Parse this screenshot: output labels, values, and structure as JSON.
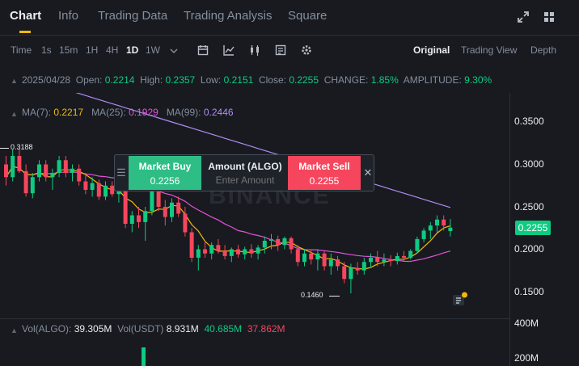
{
  "tabs": [
    {
      "label": "Chart",
      "active": true
    },
    {
      "label": "Info"
    },
    {
      "label": "Trading Data"
    },
    {
      "label": "Trading Analysis"
    },
    {
      "label": "Square"
    }
  ],
  "top_icons": [
    "fullscreen-icon",
    "layout-grid-icon"
  ],
  "toolbar": {
    "intervals": [
      "Time",
      "1s",
      "15m",
      "1H",
      "4H",
      "1D",
      "1W"
    ],
    "active_interval": "1D",
    "tool_icons": [
      "calendar-icon",
      "indicator-icon",
      "candle-type-icon",
      "template-icon",
      "settings-icon"
    ],
    "views": [
      "Original",
      "Trading View",
      "Depth"
    ],
    "active_view": "Original"
  },
  "ohlc": {
    "date": "2025/04/28",
    "open_label": "Open:",
    "open": "0.2214",
    "high_label": "High:",
    "high": "0.2357",
    "low_label": "Low:",
    "low": "0.2151",
    "close_label": "Close:",
    "close": "0.2255",
    "change_label": "CHANGE:",
    "change": "1.85%",
    "amplitude_label": "AMPLITUDE:",
    "amplitude": "9.30%"
  },
  "ma": {
    "ma7_label": "MA(7):",
    "ma7": "0.2217",
    "ma25_label": "MA(25):",
    "ma25": "0.1929",
    "ma99_label": "MA(99):",
    "ma99": "0.2446"
  },
  "colors": {
    "up": "#0ecb81",
    "down": "#f6465d",
    "ma7": "#f0b90b",
    "ma25": "#e154d8",
    "ma99": "#b18cf4",
    "accent": "#f0b90b"
  },
  "trade_panel": {
    "buy_label": "Market Buy",
    "buy_price": "0.2256",
    "amount_label": "Amount (ALGO)",
    "amount_placeholder": "Enter Amount",
    "sell_label": "Market Sell",
    "sell_price": "0.2255"
  },
  "watermark": "BINANCE",
  "price_axis": {
    "ticks": [
      "0.3500",
      "0.3000",
      "0.2500",
      "0.2000",
      "0.1500"
    ],
    "current_price": "0.2255"
  },
  "chart_labels": {
    "high_marker": "0.3188",
    "low_marker": "0.1460"
  },
  "volume": {
    "vol_algo_label": "Vol(ALGO):",
    "vol_algo": "39.305M",
    "vol_usdt_label": "Vol(USDT)",
    "vol_usdt": "8.931M",
    "ma_a": "40.685M",
    "ma_b": "37.862M",
    "ticks": [
      "400M",
      "200M"
    ]
  },
  "chart_data": {
    "type": "candlestick",
    "price_range": [
      0.13,
      0.37
    ],
    "candles": [
      {
        "o": 0.3,
        "h": 0.31,
        "l": 0.275,
        "c": 0.285
      },
      {
        "o": 0.285,
        "h": 0.318,
        "l": 0.28,
        "c": 0.31
      },
      {
        "o": 0.31,
        "h": 0.318,
        "l": 0.29,
        "c": 0.292
      },
      {
        "o": 0.292,
        "h": 0.3,
        "l": 0.262,
        "c": 0.266
      },
      {
        "o": 0.266,
        "h": 0.29,
        "l": 0.26,
        "c": 0.285
      },
      {
        "o": 0.285,
        "h": 0.305,
        "l": 0.28,
        "c": 0.3
      },
      {
        "o": 0.3,
        "h": 0.305,
        "l": 0.28,
        "c": 0.285
      },
      {
        "o": 0.285,
        "h": 0.295,
        "l": 0.27,
        "c": 0.29
      },
      {
        "o": 0.29,
        "h": 0.31,
        "l": 0.285,
        "c": 0.305
      },
      {
        "o": 0.305,
        "h": 0.31,
        "l": 0.285,
        "c": 0.29
      },
      {
        "o": 0.29,
        "h": 0.3,
        "l": 0.28,
        "c": 0.295
      },
      {
        "o": 0.295,
        "h": 0.3,
        "l": 0.275,
        "c": 0.28
      },
      {
        "o": 0.28,
        "h": 0.29,
        "l": 0.265,
        "c": 0.27
      },
      {
        "o": 0.27,
        "h": 0.285,
        "l": 0.262,
        "c": 0.278
      },
      {
        "o": 0.278,
        "h": 0.282,
        "l": 0.258,
        "c": 0.262
      },
      {
        "o": 0.262,
        "h": 0.28,
        "l": 0.258,
        "c": 0.275
      },
      {
        "o": 0.275,
        "h": 0.28,
        "l": 0.262,
        "c": 0.265
      },
      {
        "o": 0.265,
        "h": 0.275,
        "l": 0.255,
        "c": 0.27
      },
      {
        "o": 0.27,
        "h": 0.272,
        "l": 0.225,
        "c": 0.23
      },
      {
        "o": 0.23,
        "h": 0.245,
        "l": 0.22,
        "c": 0.24
      },
      {
        "o": 0.24,
        "h": 0.25,
        "l": 0.225,
        "c": 0.232
      },
      {
        "o": 0.232,
        "h": 0.25,
        "l": 0.21,
        "c": 0.245
      },
      {
        "o": 0.245,
        "h": 0.275,
        "l": 0.24,
        "c": 0.27
      },
      {
        "o": 0.27,
        "h": 0.28,
        "l": 0.245,
        "c": 0.25
      },
      {
        "o": 0.25,
        "h": 0.258,
        "l": 0.228,
        "c": 0.238
      },
      {
        "o": 0.238,
        "h": 0.26,
        "l": 0.232,
        "c": 0.255
      },
      {
        "o": 0.255,
        "h": 0.262,
        "l": 0.238,
        "c": 0.242
      },
      {
        "o": 0.242,
        "h": 0.25,
        "l": 0.215,
        "c": 0.22
      },
      {
        "o": 0.22,
        "h": 0.225,
        "l": 0.185,
        "c": 0.19
      },
      {
        "o": 0.19,
        "h": 0.205,
        "l": 0.175,
        "c": 0.2
      },
      {
        "o": 0.2,
        "h": 0.21,
        "l": 0.19,
        "c": 0.195
      },
      {
        "o": 0.195,
        "h": 0.208,
        "l": 0.188,
        "c": 0.205
      },
      {
        "o": 0.205,
        "h": 0.212,
        "l": 0.195,
        "c": 0.198
      },
      {
        "o": 0.198,
        "h": 0.205,
        "l": 0.188,
        "c": 0.192
      },
      {
        "o": 0.192,
        "h": 0.202,
        "l": 0.185,
        "c": 0.2
      },
      {
        "o": 0.2,
        "h": 0.205,
        "l": 0.19,
        "c": 0.194
      },
      {
        "o": 0.194,
        "h": 0.203,
        "l": 0.188,
        "c": 0.2
      },
      {
        "o": 0.2,
        "h": 0.206,
        "l": 0.19,
        "c": 0.195
      },
      {
        "o": 0.195,
        "h": 0.205,
        "l": 0.188,
        "c": 0.202
      },
      {
        "o": 0.202,
        "h": 0.215,
        "l": 0.195,
        "c": 0.21
      },
      {
        "o": 0.21,
        "h": 0.218,
        "l": 0.2,
        "c": 0.212
      },
      {
        "o": 0.212,
        "h": 0.216,
        "l": 0.198,
        "c": 0.205
      },
      {
        "o": 0.205,
        "h": 0.215,
        "l": 0.2,
        "c": 0.213
      },
      {
        "o": 0.213,
        "h": 0.215,
        "l": 0.195,
        "c": 0.2
      },
      {
        "o": 0.2,
        "h": 0.205,
        "l": 0.18,
        "c": 0.185
      },
      {
        "o": 0.185,
        "h": 0.2,
        "l": 0.18,
        "c": 0.195
      },
      {
        "o": 0.195,
        "h": 0.2,
        "l": 0.182,
        "c": 0.188
      },
      {
        "o": 0.188,
        "h": 0.2,
        "l": 0.175,
        "c": 0.195
      },
      {
        "o": 0.195,
        "h": 0.198,
        "l": 0.175,
        "c": 0.18
      },
      {
        "o": 0.18,
        "h": 0.195,
        "l": 0.17,
        "c": 0.188
      },
      {
        "o": 0.188,
        "h": 0.192,
        "l": 0.175,
        "c": 0.18
      },
      {
        "o": 0.18,
        "h": 0.185,
        "l": 0.16,
        "c": 0.165
      },
      {
        "o": 0.165,
        "h": 0.183,
        "l": 0.148,
        "c": 0.178
      },
      {
        "o": 0.178,
        "h": 0.185,
        "l": 0.17,
        "c": 0.175
      },
      {
        "o": 0.175,
        "h": 0.19,
        "l": 0.17,
        "c": 0.185
      },
      {
        "o": 0.185,
        "h": 0.195,
        "l": 0.178,
        "c": 0.19
      },
      {
        "o": 0.19,
        "h": 0.198,
        "l": 0.18,
        "c": 0.185
      },
      {
        "o": 0.185,
        "h": 0.195,
        "l": 0.18,
        "c": 0.188
      },
      {
        "o": 0.188,
        "h": 0.193,
        "l": 0.18,
        "c": 0.186
      },
      {
        "o": 0.186,
        "h": 0.196,
        "l": 0.182,
        "c": 0.192
      },
      {
        "o": 0.192,
        "h": 0.198,
        "l": 0.186,
        "c": 0.19
      },
      {
        "o": 0.19,
        "h": 0.2,
        "l": 0.188,
        "c": 0.198
      },
      {
        "o": 0.198,
        "h": 0.215,
        "l": 0.195,
        "c": 0.212
      },
      {
        "o": 0.212,
        "h": 0.225,
        "l": 0.208,
        "c": 0.222
      },
      {
        "o": 0.222,
        "h": 0.232,
        "l": 0.212,
        "c": 0.228
      },
      {
        "o": 0.228,
        "h": 0.24,
        "l": 0.22,
        "c": 0.235
      },
      {
        "o": 0.235,
        "h": 0.24,
        "l": 0.222,
        "c": 0.228
      },
      {
        "o": 0.2214,
        "h": 0.2357,
        "l": 0.2151,
        "c": 0.2255
      }
    ]
  }
}
